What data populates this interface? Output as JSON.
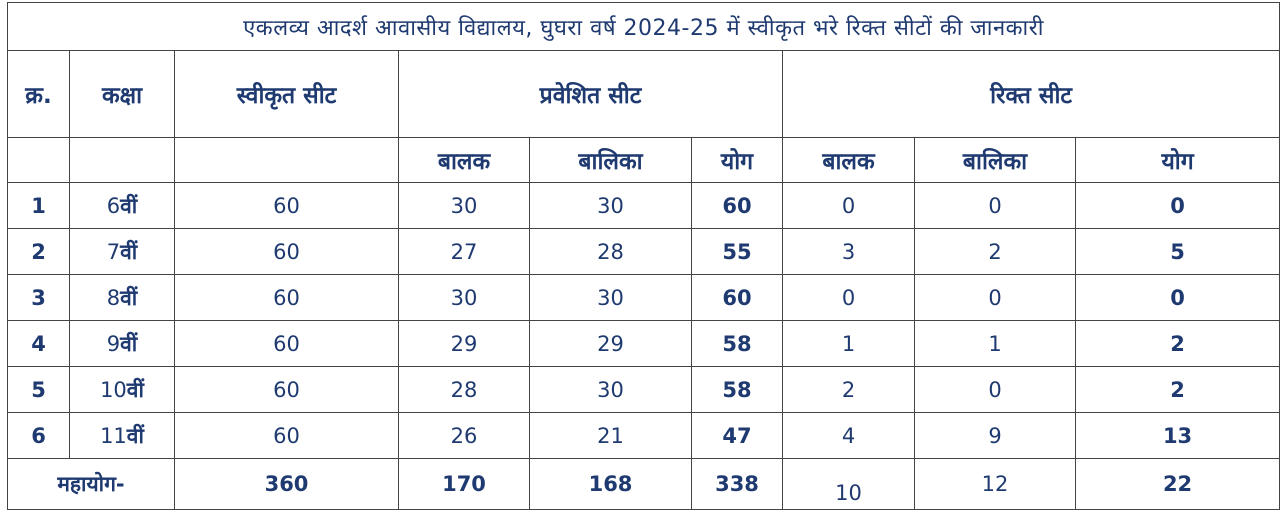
{
  "title": "एकलव्य आदर्श आवासीय विद्यालय, घुघरा वर्ष 2024-25 में स्वीकृत भरे रिक्त सीटों की जानकारी",
  "headers": {
    "sno": "क्र.",
    "class": "कक्षा",
    "sanctioned": "स्वीकृत सीट",
    "admitted": "प्रवेशित सीट",
    "vacant": "रिक्त सीट",
    "boys": "बालक",
    "girls": "बालिका",
    "total": "योग"
  },
  "rows": [
    {
      "sno": "1",
      "class_num": "6",
      "class_suffix": "वीं",
      "sanctioned": "60",
      "adm_boys": "30",
      "adm_girls": "30",
      "adm_total": "60",
      "vac_boys": "0",
      "vac_girls": "0",
      "vac_total": "0"
    },
    {
      "sno": "2",
      "class_num": "7",
      "class_suffix": "वीं",
      "sanctioned": "60",
      "adm_boys": "27",
      "adm_girls": "28",
      "adm_total": "55",
      "vac_boys": "3",
      "vac_girls": "2",
      "vac_total": "5"
    },
    {
      "sno": "3",
      "class_num": "8",
      "class_suffix": "वीं",
      "sanctioned": "60",
      "adm_boys": "30",
      "adm_girls": "30",
      "adm_total": "60",
      "vac_boys": "0",
      "vac_girls": "0",
      "vac_total": "0"
    },
    {
      "sno": "4",
      "class_num": "9",
      "class_suffix": "वीं",
      "sanctioned": "60",
      "adm_boys": "29",
      "adm_girls": "29",
      "adm_total": "58",
      "vac_boys": "1",
      "vac_girls": "1",
      "vac_total": "2"
    },
    {
      "sno": "5",
      "class_num": "10",
      "class_suffix": "वीं",
      "sanctioned": "60",
      "adm_boys": "28",
      "adm_girls": "30",
      "adm_total": "58",
      "vac_boys": "2",
      "vac_girls": "0",
      "vac_total": "2"
    },
    {
      "sno": "6",
      "class_num": "11",
      "class_suffix": "वीं",
      "sanctioned": "60",
      "adm_boys": "26",
      "adm_girls": "21",
      "adm_total": "47",
      "vac_boys": "4",
      "vac_girls": "9",
      "vac_total": "13"
    }
  ],
  "totals": {
    "label": "महायोग-",
    "sanctioned": "360",
    "adm_boys": "170",
    "adm_girls": "168",
    "adm_total": "338",
    "vac_boys": "10",
    "vac_girls": "12",
    "vac_total": "22"
  },
  "colors": {
    "text": "#1f3a70",
    "border": "#444444",
    "background": "#ffffff"
  }
}
